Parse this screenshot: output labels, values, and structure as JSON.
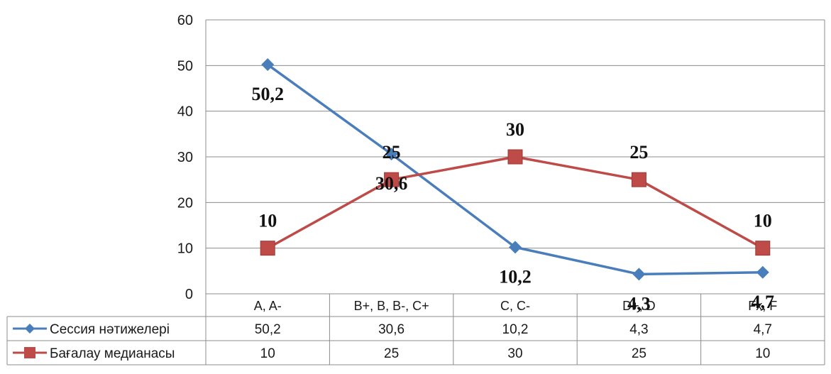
{
  "chart_data": {
    "type": "line",
    "title": "",
    "xlabel": "",
    "ylabel": "",
    "ylim": [
      0,
      60
    ],
    "yticks": [
      "0",
      "10",
      "20",
      "30",
      "40",
      "50",
      "60"
    ],
    "grid": true,
    "legend": "in-data-table",
    "categories": [
      "A, A-",
      "B+, B, B-, C+",
      "C, C-",
      "D+, D",
      "Fx, F"
    ],
    "series": [
      {
        "name": "Сессия нәтижелері",
        "values": [
          50.2,
          30.6,
          10.2,
          4.3,
          4.7
        ],
        "labels": [
          "50,2",
          "30,6",
          "10,2",
          "4,3",
          "4,7"
        ],
        "color": "#4a7ebb",
        "marker": "diamond"
      },
      {
        "name": "Бағалау медианасы",
        "values": [
          10,
          25,
          30,
          25,
          10
        ],
        "labels": [
          "10",
          "25",
          "30",
          "25",
          "10"
        ],
        "color": "#be4b48",
        "marker": "square"
      }
    ]
  }
}
